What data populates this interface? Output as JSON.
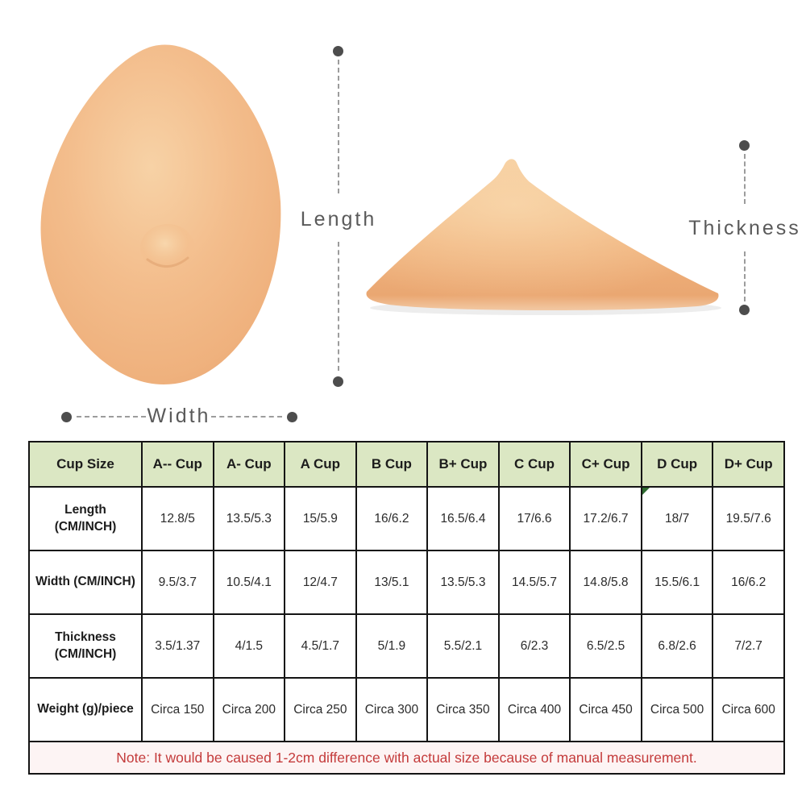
{
  "diagram": {
    "length_label": "Length",
    "width_label": "Width",
    "thickness_label": "Thickness"
  },
  "colors": {
    "header_bg": "#dbe7c3",
    "table_border": "#141414",
    "note_bg": "#fdf4f4",
    "note_text": "#c43b3b",
    "annotation_gray": "#5a5a5a",
    "skin_light": "#f8d8ae",
    "skin_mid": "#f1b582",
    "skin_edge": "#e8a56e",
    "comment_marker": "#2f6b31"
  },
  "table": {
    "header": [
      "Cup Size",
      "A-- Cup",
      "A- Cup",
      "A Cup",
      "B Cup",
      "B+ Cup",
      "C Cup",
      "C+ Cup",
      "D Cup",
      "D+ Cup"
    ],
    "rows": [
      {
        "label": "Length\n(CM/INCH)",
        "values": [
          "12.8/5",
          "13.5/5.3",
          "15/5.9",
          "16/6.2",
          "16.5/6.4",
          "17/6.6",
          "17.2/6.7",
          "18/7",
          "19.5/7.6"
        ]
      },
      {
        "label": "Width (CM/INCH)",
        "values": [
          "9.5/3.7",
          "10.5/4.1",
          "12/4.7",
          "13/5.1",
          "13.5/5.3",
          "14.5/5.7",
          "14.8/5.8",
          "15.5/6.1",
          "16/6.2"
        ]
      },
      {
        "label": "Thickness\n(CM/INCH)",
        "values": [
          "3.5/1.37",
          "4/1.5",
          "4.5/1.7",
          "5/1.9",
          "5.5/2.1",
          "6/2.3",
          "6.5/2.5",
          "6.8/2.6",
          "7/2.7"
        ]
      },
      {
        "label": "Weight (g)/piece",
        "values": [
          "Circa 150",
          "Circa 200",
          "Circa 250",
          "Circa 300",
          "Circa 350",
          "Circa 400",
          "Circa 450",
          "Circa 500",
          "Circa 600"
        ]
      }
    ],
    "note": "Note: It would be caused 1-2cm difference with actual size because of manual measurement."
  },
  "chart_data": {
    "type": "table",
    "columns": [
      "Cup Size",
      "A-- Cup",
      "A- Cup",
      "A Cup",
      "B Cup",
      "B+ Cup",
      "C Cup",
      "C+ Cup",
      "D Cup",
      "D+ Cup"
    ],
    "rows": [
      [
        "Length (CM/INCH)",
        "12.8/5",
        "13.5/5.3",
        "15/5.9",
        "16/6.2",
        "16.5/6.4",
        "17/6.6",
        "17.2/6.7",
        "18/7",
        "19.5/7.6"
      ],
      [
        "Width (CM/INCH)",
        "9.5/3.7",
        "10.5/4.1",
        "12/4.7",
        "13/5.1",
        "13.5/5.3",
        "14.5/5.7",
        "14.8/5.8",
        "15.5/6.1",
        "16/6.2"
      ],
      [
        "Thickness (CM/INCH)",
        "3.5/1.37",
        "4/1.5",
        "4.5/1.7",
        "5/1.9",
        "5.5/2.1",
        "6/2.3",
        "6.5/2.5",
        "6.8/2.6",
        "7/2.7"
      ],
      [
        "Weight (g)/piece",
        "Circa 150",
        "Circa 200",
        "Circa 250",
        "Circa 300",
        "Circa 350",
        "Circa 400",
        "Circa 450",
        "Circa 500",
        "Circa 600"
      ]
    ],
    "note": "Note: It would be caused 1-2cm difference with actual size because of manual measurement."
  }
}
